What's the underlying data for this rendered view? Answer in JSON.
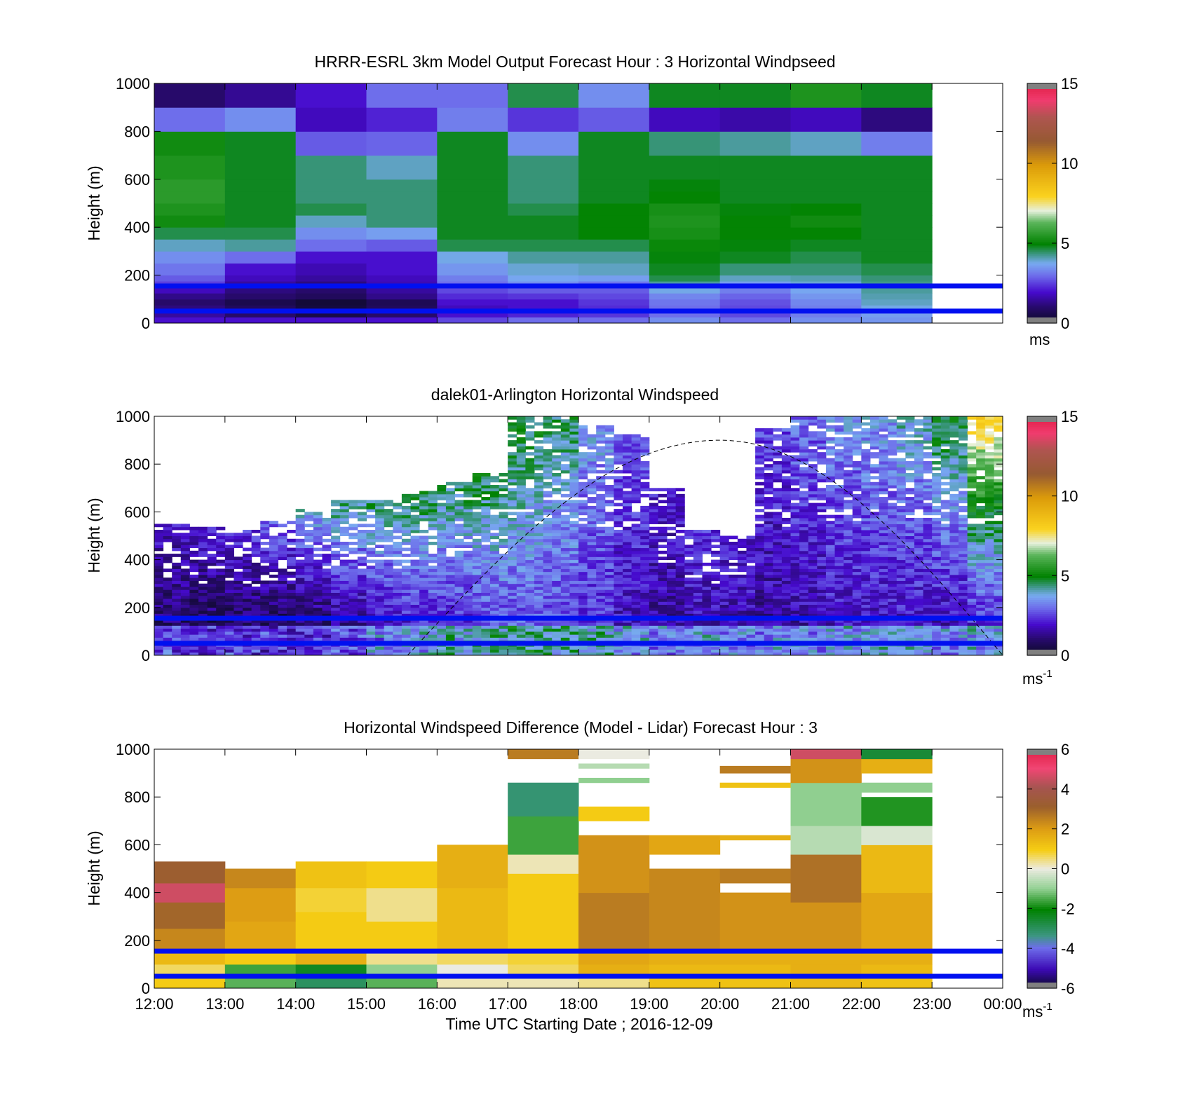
{
  "chart_data": [
    {
      "type": "heatmap",
      "title": "HRRR-ESRL 3km Model Output   Forecast Hour : 3 Horizontal Windpseed",
      "ylabel": "Height (m)",
      "ylim": [
        0,
        1000
      ],
      "yticks": [
        "0",
        "200",
        "400",
        "600",
        "800",
        "1000"
      ],
      "x_hours": [
        "12:00",
        "13:00",
        "14:00",
        "15:00",
        "16:00",
        "17:00",
        "18:00",
        "19:00",
        "20:00",
        "21:00",
        "22:00",
        "23:00"
      ],
      "x_range": [
        "12:00",
        "00:00"
      ],
      "reference_lines_m": [
        50,
        155
      ],
      "colorbar": {
        "min": 0,
        "max": 15,
        "ticks": [
          "0",
          "5",
          "10",
          "15"
        ],
        "unit": "ms",
        "unit_sup": ""
      },
      "row_edges_m": [
        0,
        25,
        50,
        75,
        100,
        125,
        150,
        175,
        200,
        250,
        300,
        350,
        400,
        450,
        500,
        550,
        600,
        700,
        800,
        900,
        1000
      ],
      "columns": [
        {
          "time": "12:00",
          "values": [
            2.0,
            1.5,
            1.2,
            1.0,
            1.3,
            1.8,
            2.5,
            2.8,
            3.1,
            3.4,
            4.0,
            4.6,
            5.2,
            5.4,
            5.6,
            5.6,
            5.4,
            5.2,
            3.0,
            1.0
          ]
        },
        {
          "time": "13:00",
          "values": [
            2.0,
            1.0,
            0.8,
            0.6,
            1.0,
            1.2,
            1.5,
            1.8,
            2.0,
            3.0,
            4.2,
            4.6,
            4.8,
            4.8,
            4.8,
            4.8,
            4.8,
            4.8,
            3.4,
            1.4
          ]
        },
        {
          "time": "14:00",
          "values": [
            2.0,
            0.5,
            0.4,
            0.3,
            0.8,
            1.0,
            1.2,
            1.5,
            1.7,
            2.0,
            3.0,
            3.4,
            4.0,
            4.6,
            4.4,
            4.4,
            4.4,
            2.8,
            1.8,
            2.0
          ]
        },
        {
          "time": "15:00",
          "values": [
            2.0,
            1.0,
            0.8,
            0.7,
            1.3,
            1.5,
            1.7,
            1.8,
            2.0,
            2.0,
            2.8,
            3.6,
            4.4,
            4.4,
            4.4,
            4.4,
            4.0,
            2.9,
            2.2,
            3.0
          ]
        },
        {
          "time": "16:00",
          "values": [
            2.6,
            2.0,
            1.8,
            2.0,
            2.3,
            2.6,
            3.0,
            3.2,
            3.5,
            3.8,
            4.6,
            4.8,
            4.8,
            4.8,
            4.8,
            4.8,
            4.8,
            4.8,
            3.2,
            3.0
          ]
        },
        {
          "time": "17:00",
          "values": [
            3.0,
            2.2,
            2.0,
            2.0,
            2.4,
            2.8,
            3.4,
            3.7,
            3.9,
            4.2,
            4.6,
            4.8,
            4.8,
            4.6,
            4.4,
            4.4,
            4.4,
            3.4,
            2.4,
            4.6
          ]
        },
        {
          "time": "18:00",
          "values": [
            3.0,
            2.4,
            2.3,
            2.4,
            2.6,
            2.8,
            3.1,
            3.6,
            4.0,
            4.2,
            4.6,
            5.0,
            5.0,
            5.0,
            4.8,
            4.8,
            4.8,
            4.8,
            2.8,
            3.4
          ]
        },
        {
          "time": "19:00",
          "values": [
            3.4,
            3.0,
            3.0,
            3.1,
            3.3,
            3.8,
            4.2,
            4.6,
            4.8,
            4.9,
            5.1,
            5.3,
            5.4,
            5.3,
            5.0,
            4.9,
            4.8,
            4.4,
            1.8,
            4.8
          ]
        },
        {
          "time": "20:00",
          "values": [
            3.0,
            2.6,
            2.6,
            2.7,
            2.9,
            3.2,
            3.6,
            4.0,
            4.4,
            4.8,
            4.9,
            5.0,
            5.0,
            4.9,
            4.8,
            4.8,
            4.8,
            4.2,
            1.6,
            4.8
          ]
        },
        {
          "time": "21:00",
          "values": [
            3.4,
            3.2,
            3.2,
            3.3,
            3.5,
            3.7,
            3.9,
            4.1,
            4.4,
            4.6,
            4.8,
            5.0,
            5.2,
            5.0,
            4.8,
            4.8,
            4.8,
            4.0,
            1.8,
            5.4
          ]
        },
        {
          "time": "22:00",
          "values": [
            3.5,
            3.6,
            3.8,
            4.0,
            4.1,
            4.2,
            4.3,
            4.4,
            4.6,
            4.8,
            4.8,
            4.8,
            4.8,
            4.8,
            4.8,
            4.8,
            4.8,
            3.2,
            1.2,
            4.8
          ]
        }
      ]
    },
    {
      "type": "heatmap",
      "title": "dalek01-Arlington  Horizontal Windspeed",
      "ylabel": "Height (m)",
      "ylim": [
        0,
        1000
      ],
      "yticks": [
        "0",
        "200",
        "400",
        "600",
        "800",
        "1000"
      ],
      "x_range": [
        "12:00",
        "00:00"
      ],
      "reference_lines_m": [
        50,
        155
      ],
      "colorbar": {
        "min": 0,
        "max": 15,
        "ticks": [
          "0",
          "5",
          "10",
          "15"
        ],
        "unit": "ms",
        "unit_sup": "-1"
      },
      "profiles": [
        {
          "time": "12:00",
          "top_m": 540,
          "low_ms": 0.8,
          "high_ms": 2.0
        },
        {
          "time": "12:30",
          "top_m": 530,
          "low_ms": 0.6,
          "high_ms": 2.2
        },
        {
          "time": "13:00",
          "top_m": 520,
          "low_ms": 0.6,
          "high_ms": 2.4
        },
        {
          "time": "13:30",
          "top_m": 560,
          "low_ms": 0.5,
          "high_ms": 3.0
        },
        {
          "time": "14:00",
          "top_m": 610,
          "low_ms": 0.6,
          "high_ms": 3.8
        },
        {
          "time": "14:30",
          "top_m": 640,
          "low_ms": 1.0,
          "high_ms": 4.4
        },
        {
          "time": "15:00",
          "top_m": 650,
          "low_ms": 1.4,
          "high_ms": 4.6
        },
        {
          "time": "15:30",
          "top_m": 680,
          "low_ms": 1.8,
          "high_ms": 4.8
        },
        {
          "time": "16:00",
          "top_m": 720,
          "low_ms": 2.0,
          "high_ms": 4.6
        },
        {
          "time": "16:30",
          "top_m": 760,
          "low_ms": 2.4,
          "high_ms": 4.8
        },
        {
          "time": "17:00",
          "top_m": 990,
          "low_ms": 2.6,
          "high_ms": 4.9
        },
        {
          "time": "17:30",
          "top_m": 990,
          "low_ms": 2.4,
          "high_ms": 4.6
        },
        {
          "time": "18:00",
          "top_m": 960,
          "low_ms": 2.2,
          "high_ms": 3.6
        },
        {
          "time": "18:30",
          "top_m": 920,
          "low_ms": 1.8,
          "high_ms": 2.8
        },
        {
          "time": "19:00",
          "top_m": 700,
          "low_ms": 1.4,
          "high_ms": 2.2
        },
        {
          "time": "19:30",
          "top_m": 520,
          "low_ms": 1.6,
          "high_ms": 2.4
        },
        {
          "time": "20:00",
          "top_m": 500,
          "low_ms": 1.6,
          "high_ms": 2.2
        },
        {
          "time": "20:30",
          "top_m": 940,
          "low_ms": 1.4,
          "high_ms": 2.6
        },
        {
          "time": "21:00",
          "top_m": 990,
          "low_ms": 1.6,
          "high_ms": 3.0
        },
        {
          "time": "21:30",
          "top_m": 990,
          "low_ms": 1.8,
          "high_ms": 3.4
        },
        {
          "time": "22:00",
          "top_m": 990,
          "low_ms": 1.8,
          "high_ms": 3.6
        },
        {
          "time": "22:30",
          "top_m": 990,
          "low_ms": 1.8,
          "high_ms": 4.0
        },
        {
          "time": "23:00",
          "top_m": 990,
          "low_ms": 1.6,
          "high_ms": 5.0
        },
        {
          "time": "23:30",
          "top_m": 990,
          "low_ms": 1.8,
          "high_ms": 8.0
        }
      ],
      "curve": {
        "style": "dashed",
        "peak_time": "20:00",
        "peak_m": 900,
        "zero_times": [
          "15:35",
          "00:00"
        ]
      }
    },
    {
      "type": "heatmap",
      "title": "Horizontal Windspeed Difference (Model - Lidar) Forecast Hour : 3",
      "ylabel": "Height (m)",
      "xlabel": "Time UTC  Starting Date ; 2016-12-09",
      "ylim": [
        0,
        1000
      ],
      "yticks": [
        "0",
        "200",
        "400",
        "600",
        "800",
        "1000"
      ],
      "xticks": [
        "12:00",
        "13:00",
        "14:00",
        "15:00",
        "16:00",
        "17:00",
        "18:00",
        "19:00",
        "20:00",
        "21:00",
        "22:00",
        "23:00",
        "00:00"
      ],
      "reference_lines_m": [
        50,
        155
      ],
      "colorbar": {
        "min": -6,
        "max": 6,
        "ticks": [
          "-6",
          "-4",
          "-2",
          "0",
          "2",
          "4",
          "6"
        ],
        "unit": "ms",
        "unit_sup": "-1"
      },
      "columns": [
        {
          "time": "12:00",
          "segments": [
            [
              0,
              50,
              1.0
            ],
            [
              50,
              100,
              0.6
            ],
            [
              100,
              155,
              1.4
            ],
            [
              155,
              250,
              2.4
            ],
            [
              250,
              360,
              3.0
            ],
            [
              360,
              440,
              4.6
            ],
            [
              440,
              530,
              3.2
            ]
          ]
        },
        {
          "time": "13:00",
          "segments": [
            [
              0,
              50,
              -1.4
            ],
            [
              50,
              100,
              -1.6
            ],
            [
              100,
              155,
              1.0
            ],
            [
              155,
              280,
              1.8
            ],
            [
              280,
              420,
              2.0
            ],
            [
              420,
              500,
              2.4
            ]
          ]
        },
        {
          "time": "14:00",
          "segments": [
            [
              0,
              50,
              -3.0
            ],
            [
              50,
              100,
              -2.4
            ],
            [
              100,
              155,
              1.6
            ],
            [
              155,
              320,
              1.0
            ],
            [
              320,
              420,
              0.8
            ],
            [
              420,
              530,
              1.2
            ]
          ]
        },
        {
          "time": "15:00",
          "segments": [
            [
              0,
              50,
              -1.4
            ],
            [
              50,
              100,
              -1.0
            ],
            [
              100,
              155,
              0.4
            ],
            [
              155,
              280,
              1.0
            ],
            [
              280,
              420,
              0.4
            ],
            [
              420,
              530,
              1.0
            ]
          ]
        },
        {
          "time": "16:00",
          "segments": [
            [
              0,
              50,
              0.2
            ],
            [
              50,
              100,
              0.0
            ],
            [
              100,
              155,
              0.6
            ],
            [
              155,
              420,
              1.4
            ],
            [
              420,
              600,
              1.6
            ]
          ]
        },
        {
          "time": "17:00",
          "segments": [
            [
              0,
              50,
              0.2
            ],
            [
              50,
              100,
              0.6
            ],
            [
              100,
              155,
              0.8
            ],
            [
              155,
              480,
              1.0
            ],
            [
              480,
              560,
              0.2
            ],
            [
              560,
              720,
              -1.6
            ],
            [
              720,
              860,
              -3.2
            ],
            [
              960,
              1000,
              2.6
            ]
          ]
        },
        {
          "time": "18:00",
          "segments": [
            [
              0,
              50,
              0.4
            ],
            [
              50,
              100,
              1.6
            ],
            [
              100,
              155,
              1.8
            ],
            [
              155,
              400,
              2.6
            ],
            [
              400,
              640,
              2.2
            ],
            [
              700,
              760,
              1.0
            ],
            [
              860,
              880,
              -1.0
            ],
            [
              920,
              940,
              -0.6
            ],
            [
              960,
              1000,
              0.0
            ]
          ]
        },
        {
          "time": "19:00",
          "segments": [
            [
              0,
              50,
              1.2
            ],
            [
              50,
              100,
              1.4
            ],
            [
              100,
              155,
              1.6
            ],
            [
              155,
              500,
              2.4
            ],
            [
              560,
              640,
              1.8
            ]
          ]
        },
        {
          "time": "20:00",
          "segments": [
            [
              0,
              50,
              1.2
            ],
            [
              50,
              100,
              1.4
            ],
            [
              100,
              155,
              1.6
            ],
            [
              155,
              400,
              2.2
            ],
            [
              440,
              500,
              2.6
            ],
            [
              620,
              640,
              1.6
            ],
            [
              840,
              860,
              1.2
            ],
            [
              900,
              930,
              2.6
            ]
          ]
        },
        {
          "time": "21:00",
          "segments": [
            [
              0,
              50,
              1.4
            ],
            [
              50,
              100,
              1.6
            ],
            [
              100,
              155,
              1.6
            ],
            [
              155,
              360,
              2.2
            ],
            [
              360,
              560,
              2.8
            ],
            [
              560,
              680,
              -0.6
            ],
            [
              680,
              860,
              -1.0
            ],
            [
              860,
              960,
              2.2
            ],
            [
              960,
              1000,
              4.6
            ]
          ]
        },
        {
          "time": "22:00",
          "segments": [
            [
              0,
              50,
              1.2
            ],
            [
              50,
              100,
              1.4
            ],
            [
              100,
              155,
              1.6
            ],
            [
              155,
              400,
              1.8
            ],
            [
              400,
              600,
              1.4
            ],
            [
              600,
              680,
              -0.2
            ],
            [
              680,
              800,
              -1.8
            ],
            [
              820,
              860,
              -1.0
            ],
            [
              900,
              960,
              1.6
            ],
            [
              960,
              1000,
              -2.6
            ]
          ]
        }
      ]
    }
  ]
}
